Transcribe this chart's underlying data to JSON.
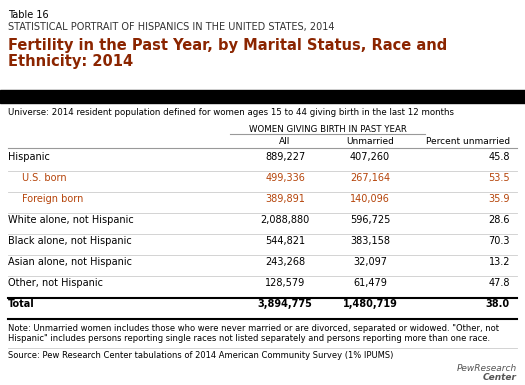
{
  "table_number": "Table 16",
  "supertitle": "STATISTICAL PORTRAIT OF HISPANICS IN THE UNITED STATES, 2014",
  "title_line1": "Fertility in the Past Year, by Marital Status, Race and",
  "title_line2": "Ethnicity: 2014",
  "universe": "Universe: 2014 resident population defined for women ages 15 to 44 giving birth in the last 12 months",
  "group_header": "WOMEN GIVING BIRTH IN PAST YEAR",
  "col_headers": [
    "All",
    "Unmarried",
    "Percent unmarried"
  ],
  "rows": [
    {
      "label": "Hispanic",
      "all": "889,227",
      "unmarried": "407,260",
      "pct": "45.8",
      "indent": false,
      "bold": false,
      "color": "#000000"
    },
    {
      "label": "U.S. born",
      "all": "499,336",
      "unmarried": "267,164",
      "pct": "53.5",
      "indent": true,
      "bold": false,
      "color": "#b5440a"
    },
    {
      "label": "Foreign born",
      "all": "389,891",
      "unmarried": "140,096",
      "pct": "35.9",
      "indent": true,
      "bold": false,
      "color": "#b5440a"
    },
    {
      "label": "White alone, not Hispanic",
      "all": "2,088,880",
      "unmarried": "596,725",
      "pct": "28.6",
      "indent": false,
      "bold": false,
      "color": "#000000"
    },
    {
      "label": "Black alone, not Hispanic",
      "all": "544,821",
      "unmarried": "383,158",
      "pct": "70.3",
      "indent": false,
      "bold": false,
      "color": "#000000"
    },
    {
      "label": "Asian alone, not Hispanic",
      "all": "243,268",
      "unmarried": "32,097",
      "pct": "13.2",
      "indent": false,
      "bold": false,
      "color": "#000000"
    },
    {
      "label": "Other, not Hispanic",
      "all": "128,579",
      "unmarried": "61,479",
      "pct": "47.8",
      "indent": false,
      "bold": false,
      "color": "#000000"
    },
    {
      "label": "Total",
      "all": "3,894,775",
      "unmarried": "1,480,719",
      "pct": "38.0",
      "indent": false,
      "bold": true,
      "color": "#000000"
    }
  ],
  "note": "Note: Unmarried women includes those who were never married or are divorced, separated or widowed. \"Other, not\nHispanic\" includes persons reporting single races not listed separately and persons reporting more than one race.",
  "source": "Source: Pew Research Center tabulations of 2014 American Community Survey (1% IPUMS)",
  "title_color": "#8b2500",
  "supertitle_color": "#333333",
  "black_bar_color": "#000000",
  "background_color": "#ffffff",
  "logo_text": "PewResearchCenter"
}
